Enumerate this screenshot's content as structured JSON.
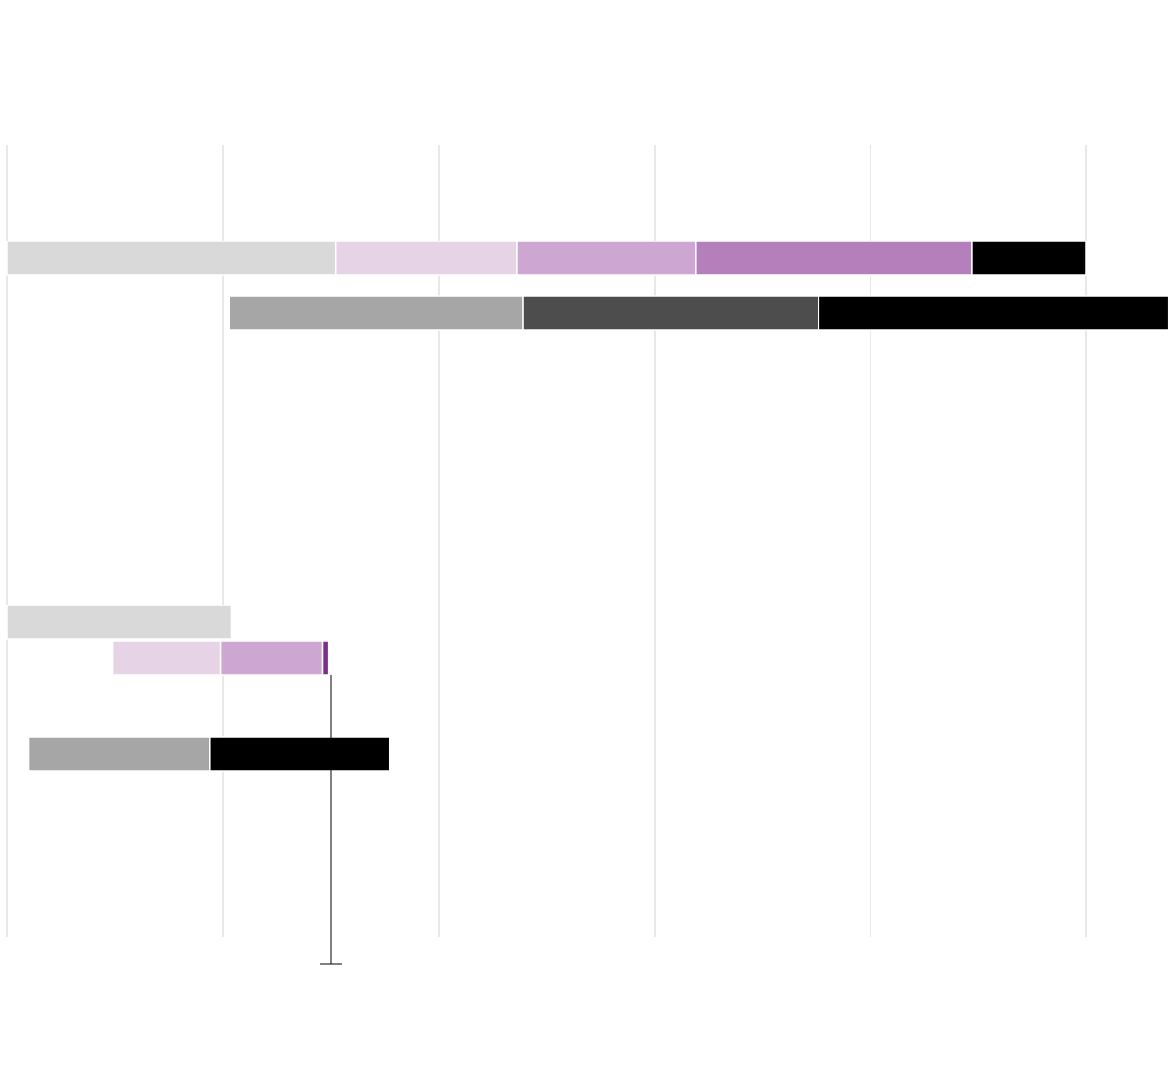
{
  "chart_data": {
    "type": "floating-stacked-bar",
    "xlim": [
      0,
      5.4
    ],
    "xticks": [
      0,
      1,
      2,
      3,
      4,
      5
    ],
    "grid": true,
    "rows": [
      {
        "start": 0,
        "segments": [
          {
            "value": 1.52,
            "color": "#d9d9d9"
          },
          {
            "value": 0.84,
            "color": "#e6d3e6"
          },
          {
            "value": 0.83,
            "color": "#cda6d1"
          },
          {
            "value": 1.28,
            "color": "#b57fbb"
          },
          {
            "value": 0.53,
            "color": "#000000"
          }
        ]
      },
      {
        "start": 1.03,
        "segments": [
          {
            "value": 1.36,
            "color": "#a6a6a6"
          },
          {
            "value": 1.37,
            "color": "#4d4d4d"
          },
          {
            "value": 1.62,
            "color": "#000000"
          }
        ]
      },
      {
        "start": 0,
        "segments": [
          {
            "value": 1.04,
            "color": "#d9d9d9"
          }
        ]
      },
      {
        "start": 0.49,
        "segments": [
          {
            "value": 0.5,
            "color": "#e6d3e6"
          },
          {
            "value": 0.47,
            "color": "#cda6d1"
          },
          {
            "value": 0.03,
            "color": "#7b2d8b"
          }
        ]
      },
      {
        "start": 0.1,
        "segments": [
          {
            "value": 0.84,
            "color": "#a6a6a6"
          },
          {
            "value": 0.83,
            "color": "#000000"
          }
        ]
      }
    ],
    "reference": 1.5
  }
}
